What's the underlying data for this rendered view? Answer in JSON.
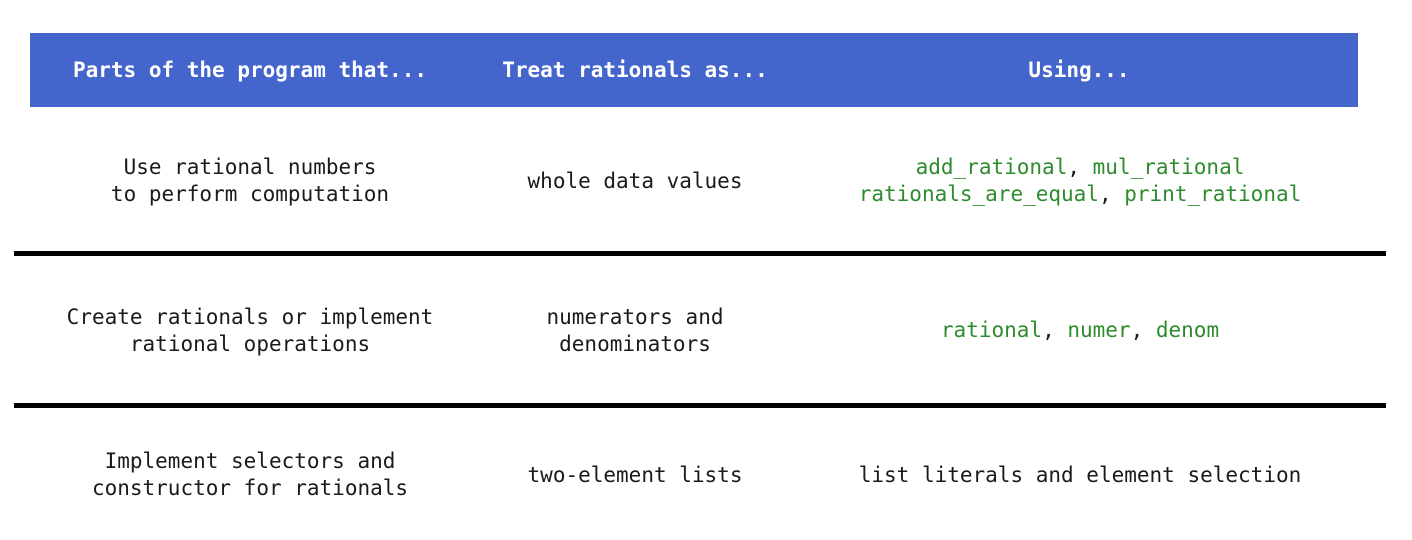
{
  "header": {
    "col1": "Parts of the program that...",
    "col2": "Treat rationals as...",
    "col3": "Using..."
  },
  "rows": [
    {
      "parts": [
        "Use rational numbers",
        "to perform computation"
      ],
      "treat": [
        "whole data values"
      ],
      "using_lines": [
        [
          {
            "t": "add_rational",
            "fn": true
          },
          {
            "t": ", ",
            "fn": false
          },
          {
            "t": "mul_rational",
            "fn": true
          }
        ],
        [
          {
            "t": "rationals_are_equal",
            "fn": true
          },
          {
            "t": ", ",
            "fn": false
          },
          {
            "t": "print_rational",
            "fn": true
          }
        ]
      ]
    },
    {
      "parts": [
        "Create rationals or implement",
        "rational operations"
      ],
      "treat": [
        "numerators and",
        "denominators"
      ],
      "using_lines": [
        [
          {
            "t": "rational",
            "fn": true
          },
          {
            "t": ", ",
            "fn": false
          },
          {
            "t": "numer",
            "fn": true
          },
          {
            "t": ", ",
            "fn": false
          },
          {
            "t": "denom",
            "fn": true
          }
        ]
      ]
    },
    {
      "parts": [
        "Implement selectors and",
        "constructor for rationals"
      ],
      "treat": [
        "two-element lists"
      ],
      "using_lines": [
        [
          {
            "t": "list literals and element selection",
            "fn": false
          }
        ]
      ]
    }
  ],
  "colors": {
    "header_bg": "#4466cc",
    "function_name": "#2e8b2e",
    "divider": "#000000"
  }
}
